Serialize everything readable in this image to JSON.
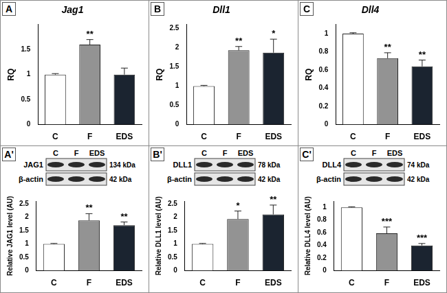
{
  "chart_data": [
    {
      "type": "bar",
      "panel": "A",
      "title": "Jag1",
      "y_label": "RQ",
      "categories": [
        "C",
        "F",
        "EDS"
      ],
      "values": [
        1.0,
        1.6,
        1.0
      ],
      "errors": [
        0.02,
        0.1,
        0.13
      ],
      "colors": [
        "#ffffff",
        "#939393",
        "#1b2430"
      ],
      "annotations": [
        {
          "category": "F",
          "text": "**"
        }
      ],
      "ylim": [
        0,
        2
      ],
      "yticks": [
        0,
        0.5,
        1,
        1.5
      ],
      "grid": false
    },
    {
      "type": "bar",
      "panel": "B",
      "title": "Dll1",
      "y_label": "RQ",
      "categories": [
        "C",
        "F",
        "EDS"
      ],
      "values": [
        1.0,
        1.93,
        1.87
      ],
      "errors": [
        0.02,
        0.1,
        0.35
      ],
      "colors": [
        "#ffffff",
        "#939393",
        "#1b2430"
      ],
      "annotations": [
        {
          "category": "F",
          "text": "**"
        },
        {
          "category": "EDS",
          "text": "*"
        }
      ],
      "ylim": [
        0,
        2.6
      ],
      "yticks": [
        0,
        0.5,
        1,
        1.5,
        2,
        2.5
      ],
      "grid": false
    },
    {
      "type": "bar",
      "panel": "C",
      "title": "Dll4",
      "y_label": "RQ",
      "categories": [
        "C",
        "F",
        "EDS"
      ],
      "values": [
        1.0,
        0.73,
        0.64
      ],
      "errors": [
        0.01,
        0.06,
        0.07
      ],
      "colors": [
        "#ffffff",
        "#939393",
        "#1b2430"
      ],
      "annotations": [
        {
          "category": "F",
          "text": "**"
        },
        {
          "category": "EDS",
          "text": "**"
        }
      ],
      "ylim": [
        0,
        1.1
      ],
      "yticks": [
        0,
        0.2,
        0.4,
        0.6,
        0.8,
        1
      ],
      "grid": false
    },
    {
      "type": "bar",
      "panel": "A'",
      "y_label": "Relative JAG1 level (AU)",
      "categories": [
        "C",
        "F",
        "EDS"
      ],
      "values": [
        1.0,
        1.88,
        1.7
      ],
      "errors": [
        0.02,
        0.25,
        0.12
      ],
      "colors": [
        "#ffffff",
        "#939393",
        "#1b2430"
      ],
      "annotations": [
        {
          "category": "F",
          "text": "**"
        },
        {
          "category": "EDS",
          "text": "**"
        }
      ],
      "ylim": [
        0,
        2.6
      ],
      "yticks": [
        0,
        0.5,
        1,
        1.5,
        2,
        2.5
      ],
      "grid": false
    },
    {
      "type": "bar",
      "panel": "B'",
      "y_label": "Relative DLL1 level (AU)",
      "categories": [
        "C",
        "F",
        "EDS"
      ],
      "values": [
        1.0,
        1.93,
        2.1
      ],
      "errors": [
        0.02,
        0.3,
        0.35
      ],
      "colors": [
        "#ffffff",
        "#939393",
        "#1b2430"
      ],
      "annotations": [
        {
          "category": "F",
          "text": "*"
        },
        {
          "category": "EDS",
          "text": "**"
        }
      ],
      "ylim": [
        0,
        2.6
      ],
      "yticks": [
        0,
        0.5,
        1,
        1.5,
        2,
        2.5
      ],
      "grid": false
    },
    {
      "type": "bar",
      "panel": "C'",
      "y_label": "Relative DLL4 level (AU)",
      "categories": [
        "C",
        "F",
        "EDS"
      ],
      "values": [
        1.0,
        0.59,
        0.4
      ],
      "errors": [
        0.01,
        0.1,
        0.03
      ],
      "colors": [
        "#ffffff",
        "#939393",
        "#1b2430"
      ],
      "annotations": [
        {
          "category": "F",
          "text": "***"
        },
        {
          "category": "EDS",
          "text": "***"
        }
      ],
      "ylim": [
        0,
        1.1
      ],
      "yticks": [
        0,
        0.2,
        0.4,
        0.6,
        0.8,
        1
      ],
      "grid": false
    }
  ],
  "blots": [
    {
      "panel": "A'",
      "lanes": [
        "C",
        "F",
        "EDS"
      ],
      "rows": [
        {
          "protein": "JAG1",
          "size": "134 kDa"
        },
        {
          "protein": "β-actin",
          "size": "42 kDa"
        }
      ]
    },
    {
      "panel": "B'",
      "lanes": [
        "C",
        "F",
        "EDS"
      ],
      "rows": [
        {
          "protein": "DLL1",
          "size": "78 kDa"
        },
        {
          "protein": "β-actin",
          "size": "42 kDa"
        }
      ]
    },
    {
      "panel": "C'",
      "lanes": [
        "C",
        "F",
        "EDS"
      ],
      "rows": [
        {
          "protein": "DLL4",
          "size": "74 kDa"
        },
        {
          "protein": "β-actin",
          "size": "42 kDa"
        }
      ]
    }
  ]
}
